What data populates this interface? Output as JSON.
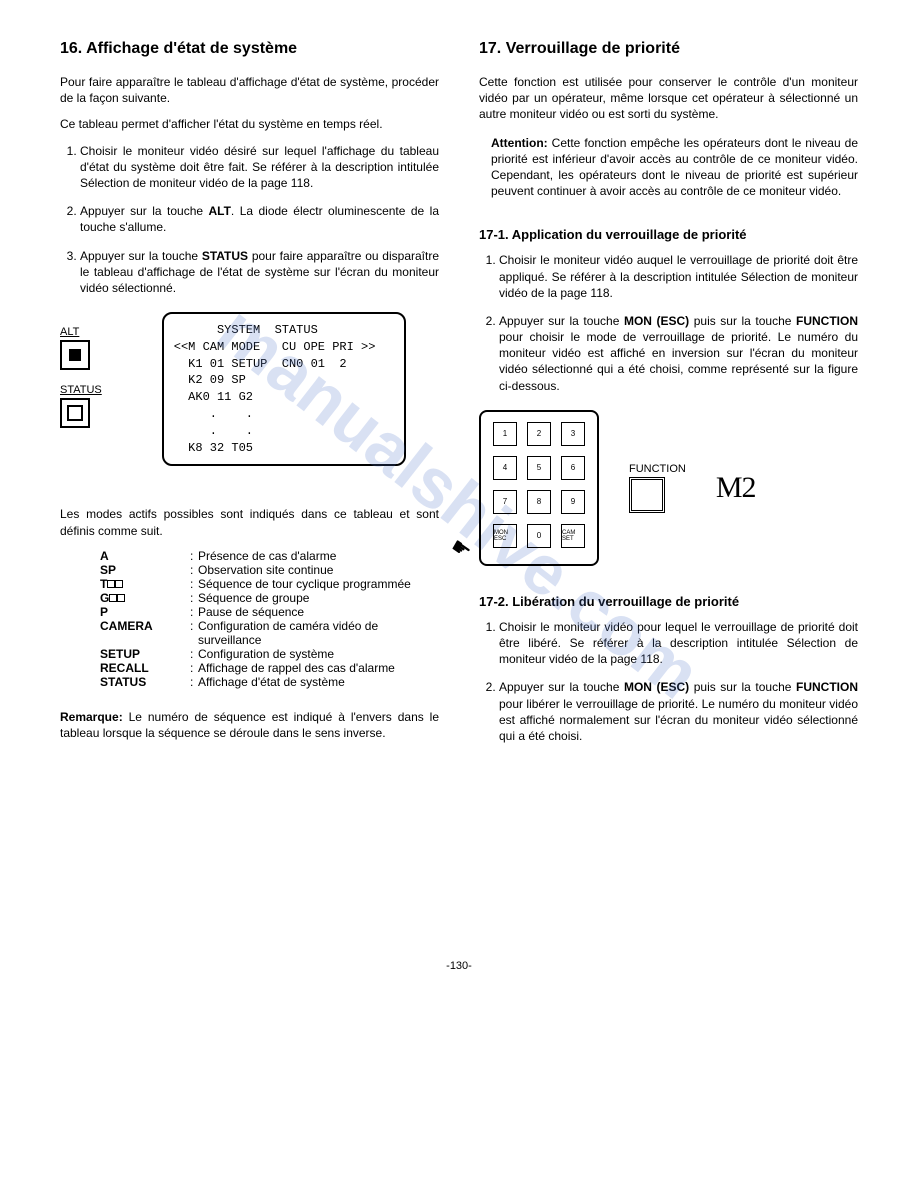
{
  "watermark": "manualshive.com",
  "page_number": "-130-",
  "left": {
    "heading": "16. Affichage d'état de système",
    "intro1": "Pour faire apparaître le tableau d'affichage d'état de système, procéder de la façon suivante.",
    "intro2": "Ce tableau permet d'afficher l'état du système en temps réel.",
    "steps": [
      {
        "pre": "Choisir le moniteur vidéo désiré sur lequel l'affichage du tableau d'état du système doit être fait. Se référer à la description intitulée Sélection de moniteur vidéo de la page 118.",
        "post": ""
      },
      {
        "pre": "Appuyer sur la touche ",
        "bold": "ALT",
        "post": ". La diode électr oluminescente de la touche s'allume."
      },
      {
        "pre": "Appuyer sur la touche ",
        "bold": "STATUS",
        "post": " pour faire apparaître ou disparaître le tableau d'affichage de l'état de système sur l'écran du moniteur vidéo sélectionné."
      }
    ],
    "alt_label": "ALT",
    "status_label": "STATUS",
    "display": "      SYSTEM  STATUS\n<<M CAM MODE   CU OPE PRI >>\n  K1 01 SETUP  CN0 01  2\n  K2 09 SP\n  AK0 11 G2\n     .    .\n     .    .\n  K8 32 T05",
    "modes_intro": "Les modes actifs possibles sont indiqués dans ce tableau et sont définis comme suit.",
    "modes": [
      {
        "k": "A",
        "v": "Présence de cas d'alarme"
      },
      {
        "k": "SP",
        "v": "Observation site continue"
      },
      {
        "k": "T",
        "icon": "t",
        "v": "Séquence de tour cyclique programmée"
      },
      {
        "k": "G",
        "icon": "g",
        "v": "Séquence de groupe"
      },
      {
        "k": "P",
        "v": "Pause de séquence"
      },
      {
        "k": "CAMERA",
        "v": "Configuration de caméra vidéo de surveillance"
      },
      {
        "k": "SETUP",
        "v": "Configuration de système"
      },
      {
        "k": "RECALL",
        "v": "Affichage de rappel des cas d'alarme"
      },
      {
        "k": "STATUS",
        "v": "Affichage d'état de système"
      }
    ],
    "remark_label": "Remarque:",
    "remark": " Le numéro de séquence est indiqué à l'envers dans le tableau lorsque la séquence se déroule dans le sens inverse."
  },
  "right": {
    "heading": "17. Verrouillage de priorité",
    "intro": "Cette fonction est utilisée pour conserver le contrôle d'un moniteur vidéo par un opérateur, même lorsque cet opérateur à sélectionné un autre moniteur vidéo ou est sorti du système.",
    "attention_label": "Attention:",
    "attention": " Cette fonction empêche les opérateurs dont le niveau de priorité est inférieur d'avoir accès au contrôle de ce moniteur vidéo. Cependant, les opérateurs dont le niveau de priorité est supérieur peuvent continuer à avoir accès au contrôle de ce moniteur vidéo.",
    "sub1": "17-1. Application du verrouillage de priorité",
    "s1_steps": [
      "Choisir le moniteur vidéo auquel le verrouillage de priorité doit être appliqué. Se référer à la description intitulée Sélection de moniteur vidéo de la page 118.",
      "Appuyer sur la touche <b>MON (ESC)</b> puis sur la touche <b>FUNCTION</b> pour choisir le mode de verrouillage de priorité. Le numéro du moniteur vidéo est affiché en inversion sur l'écran du moniteur vidéo sélectionné qui a été choisi, comme représenté sur la figure ci-dessous."
    ],
    "keypad": [
      "1",
      "2",
      "3",
      "4",
      "5",
      "6",
      "7",
      "8",
      "9",
      "MON ESC",
      "0",
      "CAM SET"
    ],
    "function_label": "FUNCTION",
    "m2": "M2",
    "sub2": "17-2. Libération du verrouillage de priorité",
    "s2_steps": [
      "Choisir le moniteur vidéo pour lequel le verrouillage de priorité doit être libéré. Se référer à la description intitulée Sélection de moniteur vidéo de la page 118.",
      "Appuyer sur la touche <b>MON (ESC)</b> puis sur la touche <b>FUNCTION</b> pour libérer le verrouillage de priorité. Le numéro du moniteur vidéo est affiché normalement sur l'écran du moniteur vidéo sélectionné qui a été choisi."
    ]
  }
}
